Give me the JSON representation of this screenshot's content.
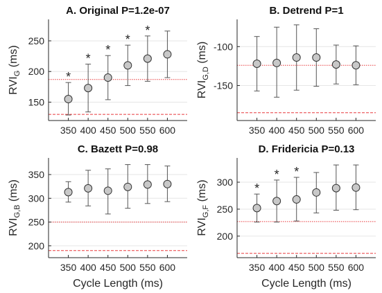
{
  "figure": {
    "xlabel": "Cycle Length (ms)"
  },
  "colors": {
    "marker_fill": "#c8c8c8",
    "marker_stroke": "#333333",
    "errorbar": "#555555",
    "ref_line": "#e8383b",
    "grid": "#e6e6e6",
    "axis": "#262626"
  },
  "chart_data": [
    {
      "type": "scatter",
      "title": "A. Original P=1.2e-07",
      "ylabel_main": "RVI",
      "ylabel_sub": "G",
      "ylabel_unit": "(ms)",
      "x": [
        350,
        400,
        450,
        500,
        550,
        600
      ],
      "xticks": [
        "350",
        "400",
        "450",
        "500",
        "550",
        "600"
      ],
      "y": [
        155,
        173,
        190,
        210,
        221,
        228
      ],
      "yerr_low": [
        129,
        134,
        154,
        177,
        184,
        190
      ],
      "yerr_high": [
        182,
        212,
        226,
        243,
        258,
        266
      ],
      "significant": [
        true,
        true,
        true,
        true,
        true,
        false
      ],
      "marker": "*",
      "ref_dotted": 187,
      "ref_dashed": 130,
      "ylim": [
        120,
        285
      ],
      "yticks": [
        150,
        200,
        250
      ],
      "grid": true
    },
    {
      "type": "scatter",
      "title": "B. Detrend P=1",
      "ylabel_main": "RVI",
      "ylabel_sub": "G,D",
      "ylabel_unit": "(ms)",
      "x": [
        350,
        400,
        450,
        500,
        550,
        600
      ],
      "xticks": [
        "350",
        "400",
        "450",
        "500",
        "550",
        "600"
      ],
      "y": [
        -122,
        -121,
        -114,
        -114,
        -123,
        -124
      ],
      "yerr_low": [
        -157,
        -165,
        -156,
        -151,
        -148,
        -149
      ],
      "yerr_high": [
        -87,
        -75,
        -72,
        -77,
        -98,
        -99
      ],
      "significant": [
        false,
        false,
        false,
        false,
        false,
        false
      ],
      "marker": "*",
      "ref_dotted": -124,
      "ref_dashed": -185,
      "ylim": [
        -195,
        -65
      ],
      "yticks": [
        -150,
        -100
      ],
      "grid": true
    },
    {
      "type": "scatter",
      "title": "C. Bazett P=0.98",
      "ylabel_main": "RVI",
      "ylabel_sub": "G,B",
      "ylabel_unit": "(ms)",
      "x": [
        350,
        400,
        450,
        500,
        550,
        600
      ],
      "xticks": [
        "350",
        "400",
        "450",
        "500",
        "550",
        "600"
      ],
      "y": [
        313,
        321,
        316,
        324,
        329,
        330
      ],
      "yerr_low": [
        292,
        284,
        267,
        279,
        289,
        293
      ],
      "yerr_high": [
        335,
        359,
        362,
        371,
        371,
        368
      ],
      "significant": [
        false,
        false,
        false,
        false,
        false,
        false
      ],
      "marker": "*",
      "ref_dotted": 250,
      "ref_dashed": 190,
      "ylim": [
        175,
        385
      ],
      "yticks": [
        200,
        250,
        300,
        350
      ],
      "grid": true
    },
    {
      "type": "scatter",
      "title": "D. Fridericia P=0.13",
      "ylabel_main": "RVI",
      "ylabel_sub": "G,F",
      "ylabel_unit": "(ms)",
      "x": [
        350,
        400,
        450,
        500,
        550,
        600
      ],
      "xticks": [
        "350",
        "400",
        "450",
        "500",
        "550",
        "600"
      ],
      "y": [
        252,
        265,
        268,
        281,
        289,
        290
      ],
      "yerr_low": [
        226,
        226,
        228,
        243,
        248,
        249
      ],
      "yerr_high": [
        278,
        304,
        309,
        318,
        332,
        332
      ],
      "significant": [
        true,
        true,
        true,
        false,
        false,
        false
      ],
      "marker": "*",
      "ref_dotted": 227,
      "ref_dashed": 168,
      "ylim": [
        160,
        345
      ],
      "yticks": [
        200,
        250,
        300
      ],
      "grid": true
    }
  ]
}
